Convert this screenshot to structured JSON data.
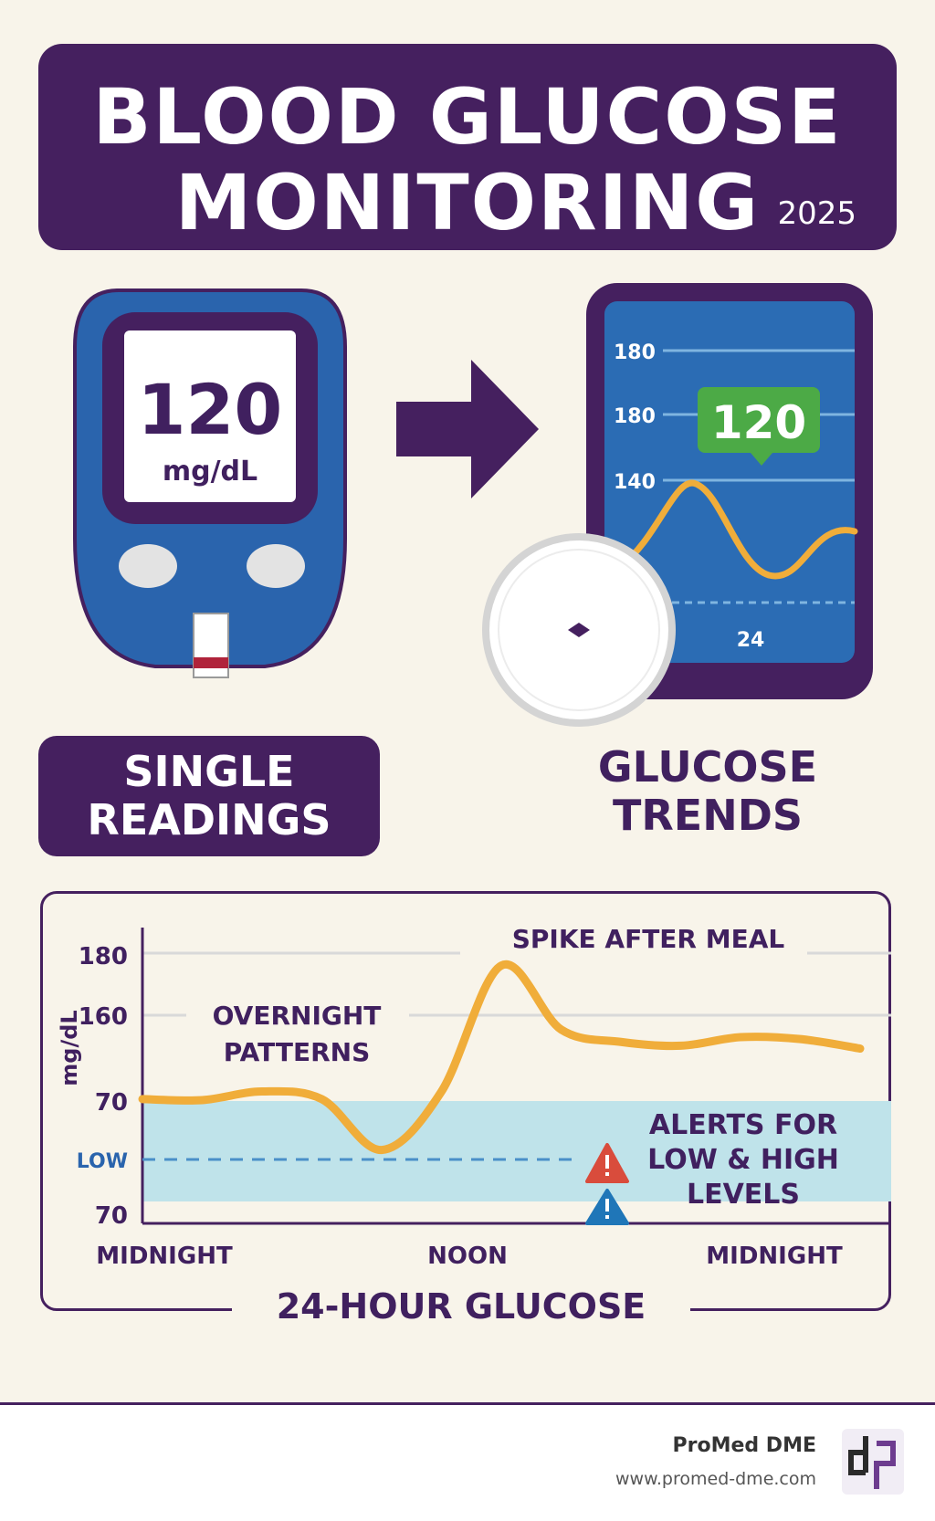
{
  "header": {
    "title_line_1": "BLOOD GLUCOSE",
    "title_line_2": "MONITORING",
    "year": "2025"
  },
  "meter": {
    "reading": "120",
    "unit": "mg/dL"
  },
  "phone": {
    "axis_labels": [
      "180",
      "180",
      "140"
    ],
    "current_value": "120",
    "time_label": "24"
  },
  "labels": {
    "single_readings_line_1": "SINGLE",
    "single_readings_line_2": "READINGS",
    "glucose_trends_line_1": "GLUCOSE",
    "glucose_trends_line_2": "TRENDS"
  },
  "chart_data": {
    "type": "line",
    "title": "24-HOUR GLUCOSE",
    "ylabel": "mg/dL",
    "y_tick_labels": [
      "180",
      "160",
      "70",
      "70"
    ],
    "low_label": "LOW",
    "x_tick_labels": [
      "MIDNIGHT",
      "NOON",
      "MIDNIGHT"
    ],
    "annotations": {
      "spike": "SPIKE AFTER MEAL",
      "overnight_line_1": "OVERNIGHT",
      "overnight_line_2": "PATTERNS",
      "alerts_line_1": "ALERTS FOR",
      "alerts_line_2": "LOW & HIGH",
      "alerts_line_3": "LEVELS"
    },
    "series": [
      {
        "x": [
          0,
          2,
          4,
          6,
          8,
          10,
          12,
          14,
          16,
          18,
          20,
          22,
          24
        ],
        "values": [
          72,
          71,
          80,
          72,
          66,
          80,
          176,
          145,
          132,
          128,
          137,
          135,
          125
        ]
      }
    ],
    "target_band": "shaded",
    "grid": true,
    "colors": {
      "line": "#f0ad3a",
      "band": "#bfe3ea",
      "low_line": "#4a8fc8",
      "alert_red": "#d94c3c",
      "alert_blue": "#1f76b8"
    }
  },
  "footer": {
    "brand": "ProMed DME",
    "url": "www.promed-dme.com"
  }
}
